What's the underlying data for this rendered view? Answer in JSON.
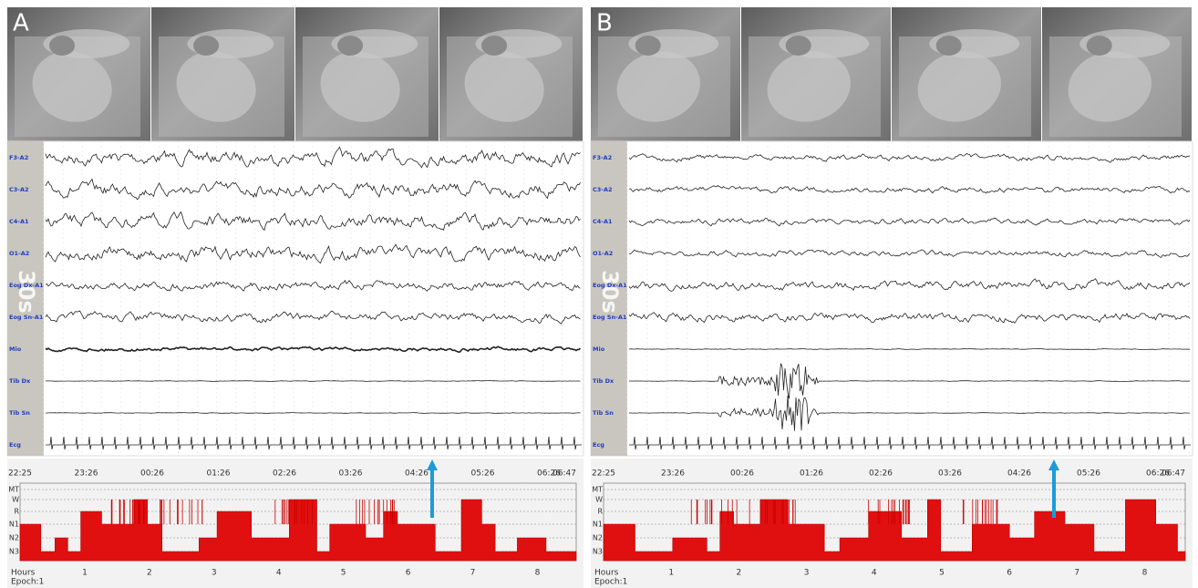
{
  "panels": [
    {
      "label": "A",
      "scale_label": "30s",
      "channels": [
        "F3-A2",
        "C3-A2",
        "C4-A1",
        "O1-A2",
        "Eog Dx-A1",
        "Eog Sn-A1",
        "Mio",
        "Tib Dx",
        "Tib Sn",
        "Ecg"
      ],
      "clock_times": [
        "22:25",
        "23:26",
        "00:26",
        "01:26",
        "02:26",
        "03:26",
        "04:26",
        "05:26",
        "06:26",
        "06:47"
      ],
      "stages": [
        "MT",
        "W",
        "R",
        "N1",
        "N2",
        "N3"
      ],
      "hours": [
        "1",
        "2",
        "3",
        "4",
        "5",
        "6",
        "7",
        "8"
      ],
      "hours_label": "Hours",
      "epoch_label": "Epoch:1"
    },
    {
      "label": "B",
      "scale_label": "30s",
      "channels": [
        "F3-A2",
        "C3-A2",
        "C4-A1",
        "O1-A2",
        "Eog Dx-A1",
        "Eog Sn-A1",
        "Mio",
        "Tib Dx",
        "Tib Sn",
        "Ecg"
      ],
      "clock_times": [
        "22:25",
        "23:26",
        "00:26",
        "01:26",
        "02:26",
        "03:26",
        "04:26",
        "05:26",
        "06:26",
        "06:47"
      ],
      "stages": [
        "MT",
        "W",
        "R",
        "N1",
        "N2",
        "N3"
      ],
      "hours": [
        "1",
        "2",
        "3",
        "4",
        "5",
        "6",
        "7",
        "8"
      ],
      "hours_label": "Hours",
      "epoch_label": "Epoch:1"
    }
  ]
}
